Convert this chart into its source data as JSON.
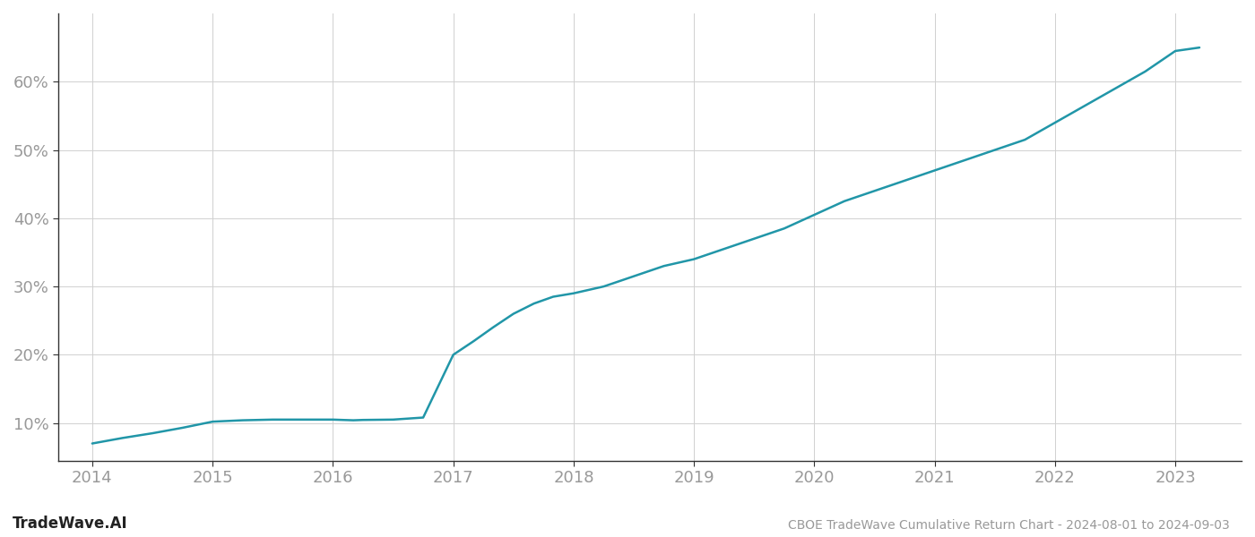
{
  "title": "CBOE TradeWave Cumulative Return Chart - 2024-08-01 to 2024-09-03",
  "watermark": "TradeWave.AI",
  "line_color": "#2196a8",
  "line_width": 1.8,
  "background_color": "#ffffff",
  "grid_color": "#d0d0d0",
  "x_values": [
    2014.0,
    2014.25,
    2014.5,
    2014.75,
    2015.0,
    2015.25,
    2015.5,
    2015.75,
    2016.0,
    2016.08,
    2016.17,
    2016.25,
    2016.5,
    2016.75,
    2017.0,
    2017.17,
    2017.33,
    2017.5,
    2017.67,
    2017.83,
    2018.0,
    2018.25,
    2018.5,
    2018.75,
    2019.0,
    2019.25,
    2019.5,
    2019.75,
    2020.0,
    2020.25,
    2020.5,
    2020.75,
    2021.0,
    2021.25,
    2021.5,
    2021.75,
    2022.0,
    2022.25,
    2022.5,
    2022.75,
    2023.0,
    2023.2
  ],
  "y_values": [
    7.0,
    7.8,
    8.5,
    9.3,
    10.2,
    10.4,
    10.5,
    10.5,
    10.5,
    10.45,
    10.4,
    10.45,
    10.5,
    10.8,
    20.0,
    22.0,
    24.0,
    26.0,
    27.5,
    28.5,
    29.0,
    30.0,
    31.5,
    33.0,
    34.0,
    35.5,
    37.0,
    38.5,
    40.5,
    42.5,
    44.0,
    45.5,
    47.0,
    48.5,
    50.0,
    51.5,
    54.0,
    56.5,
    59.0,
    61.5,
    64.5,
    65.0
  ],
  "yticks": [
    10,
    20,
    30,
    40,
    50,
    60
  ],
  "xticks": [
    2014,
    2015,
    2016,
    2017,
    2018,
    2019,
    2020,
    2021,
    2022,
    2023
  ],
  "xlim": [
    2013.72,
    2023.55
  ],
  "ylim": [
    4.5,
    70
  ],
  "tick_color": "#999999",
  "spine_color": "#333333",
  "tick_fontsize": 13,
  "title_fontsize": 10,
  "watermark_fontsize": 12,
  "watermark_bold": true
}
